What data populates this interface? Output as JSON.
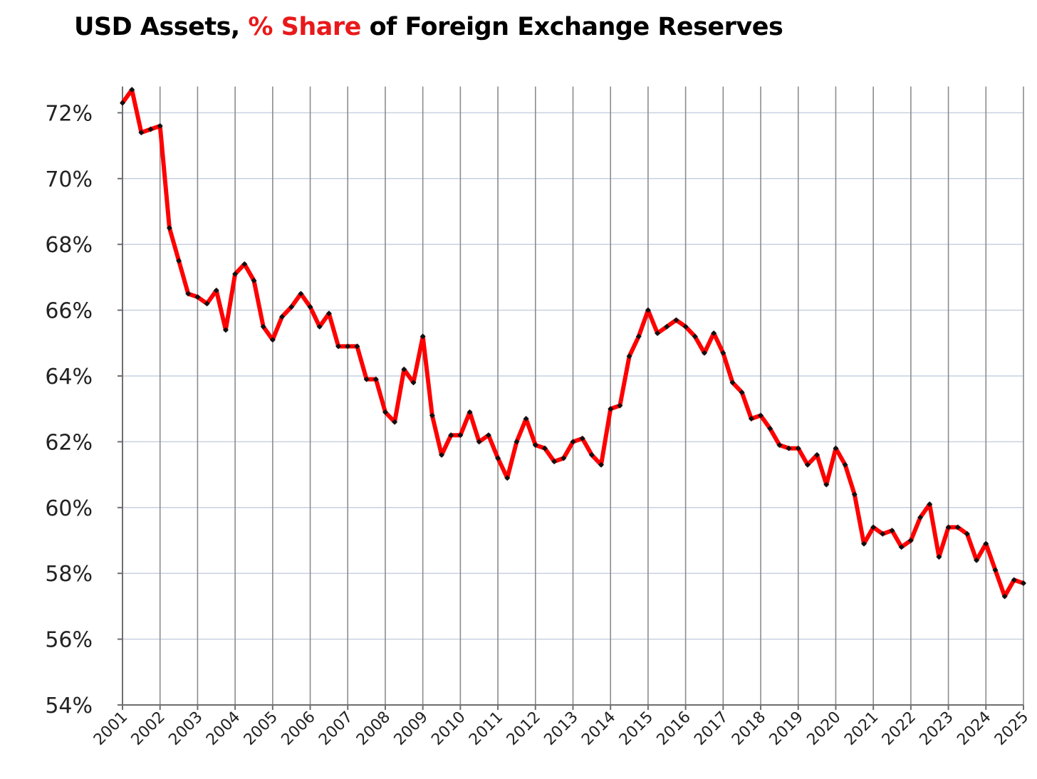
{
  "chart_data": {
    "type": "line",
    "title_parts": {
      "before": "USD Assets, ",
      "highlight": "% Share",
      "after": " of Foreign Exchange Reserves"
    },
    "ylim": [
      54,
      72.8
    ],
    "y_ticks": [
      "54%",
      "56%",
      "58%",
      "60%",
      "62%",
      "64%",
      "66%",
      "68%",
      "70%",
      "72%"
    ],
    "y_tick_values": [
      54,
      56,
      58,
      60,
      62,
      64,
      66,
      68,
      70,
      72
    ],
    "x_ticks": [
      "2001",
      "2002",
      "2003",
      "2004",
      "2005",
      "2006",
      "2007",
      "2008",
      "2009",
      "2010",
      "2011",
      "2012",
      "2013",
      "2014",
      "2015",
      "2016",
      "2017",
      "2018",
      "2019",
      "2020",
      "2021",
      "2022",
      "2023",
      "2024",
      "2025"
    ],
    "grid": true,
    "series": [
      {
        "color": "#ff0000",
        "marker_color": "#111111",
        "x": [
          2001.0,
          2001.25,
          2001.5,
          2001.75,
          2002.0,
          2002.25,
          2002.5,
          2002.75,
          2003.0,
          2003.25,
          2003.5,
          2003.75,
          2004.0,
          2004.25,
          2004.5,
          2004.75,
          2005.0,
          2005.25,
          2005.5,
          2005.75,
          2006.0,
          2006.25,
          2006.5,
          2006.75,
          2007.0,
          2007.25,
          2007.5,
          2007.75,
          2008.0,
          2008.25,
          2008.5,
          2008.75,
          2009.0,
          2009.25,
          2009.5,
          2009.75,
          2010.0,
          2010.25,
          2010.5,
          2010.75,
          2011.0,
          2011.25,
          2011.5,
          2011.75,
          2012.0,
          2012.25,
          2012.5,
          2012.75,
          2013.0,
          2013.25,
          2013.5,
          2013.75,
          2014.0,
          2014.25,
          2014.5,
          2014.75,
          2015.0,
          2015.25,
          2015.5,
          2015.75,
          2016.0,
          2016.25,
          2016.5,
          2016.75,
          2017.0,
          2017.25,
          2017.5,
          2017.75,
          2018.0,
          2018.25,
          2018.5,
          2018.75,
          2019.0,
          2019.25,
          2019.5,
          2019.75,
          2020.0,
          2020.25,
          2020.5,
          2020.75,
          2021.0,
          2021.25,
          2021.5,
          2021.75,
          2022.0,
          2022.25,
          2022.5,
          2022.75,
          2023.0,
          2023.25,
          2023.5,
          2023.75,
          2024.0,
          2024.25,
          2024.5,
          2024.75,
          2025.0
        ],
        "values": [
          72.3,
          72.7,
          71.4,
          71.5,
          71.6,
          68.5,
          67.5,
          66.5,
          66.4,
          66.2,
          66.6,
          65.4,
          67.1,
          67.4,
          66.9,
          65.5,
          65.1,
          65.8,
          66.1,
          66.5,
          66.1,
          65.5,
          65.9,
          64.9,
          64.9,
          64.9,
          63.9,
          63.9,
          62.9,
          62.6,
          64.2,
          63.8,
          65.2,
          62.8,
          61.6,
          62.2,
          62.2,
          62.9,
          62.0,
          62.2,
          61.5,
          60.9,
          62.0,
          62.7,
          61.9,
          61.8,
          61.4,
          61.5,
          62.0,
          62.1,
          61.6,
          61.3,
          63.0,
          63.1,
          64.6,
          65.2,
          66.0,
          65.3,
          65.5,
          65.7,
          65.5,
          65.2,
          64.7,
          65.3,
          64.7,
          63.8,
          63.5,
          62.7,
          62.8,
          62.4,
          61.9,
          61.8,
          61.8,
          61.3,
          61.6,
          60.7,
          61.8,
          61.3,
          60.4,
          58.9,
          59.4,
          59.2,
          59.3,
          58.8,
          59.0,
          59.7,
          60.1,
          58.5,
          59.4,
          59.4,
          59.2,
          58.4,
          58.9,
          58.1,
          57.3,
          57.8,
          57.7
        ]
      }
    ]
  }
}
